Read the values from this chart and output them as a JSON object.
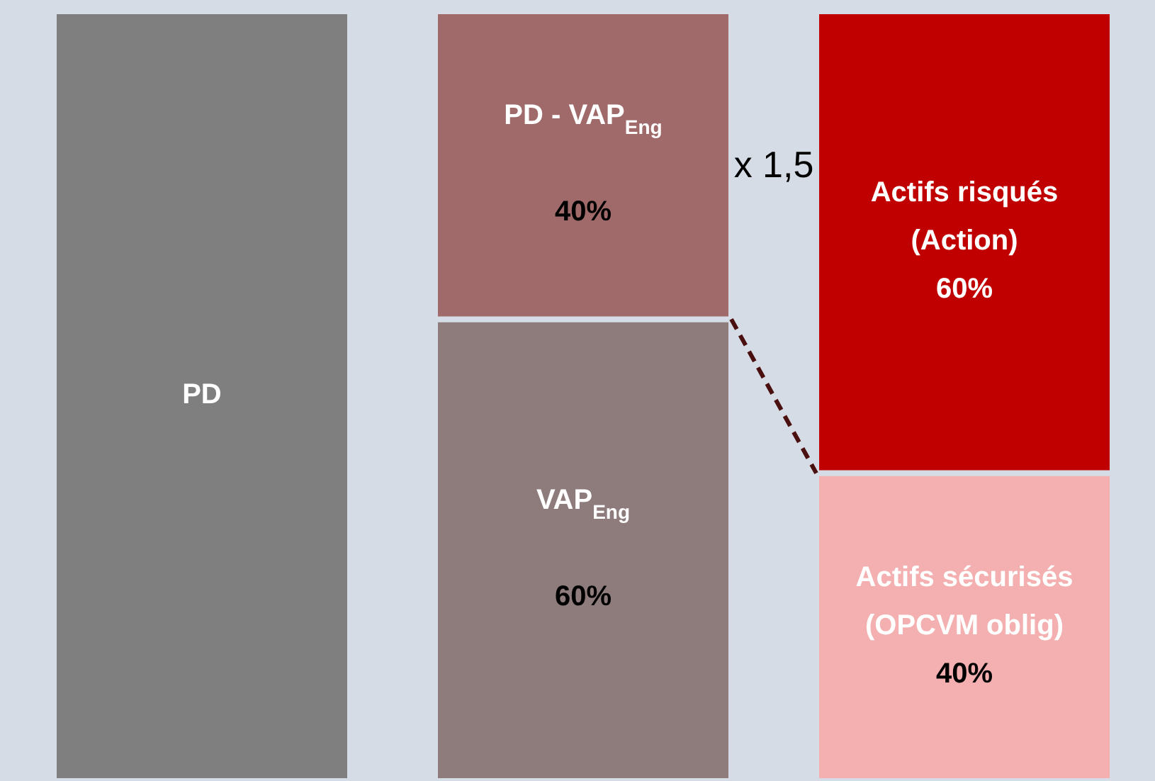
{
  "chart_data": {
    "type": "bar",
    "stacked": true,
    "ylim": [
      0,
      100
    ],
    "categories": [
      null,
      null,
      null
    ],
    "series": [
      {
        "values": [
          100,
          60,
          40
        ],
        "colors": [
          "#7f7f7f",
          "#8e7c7c",
          "#f4b0b0"
        ],
        "value_labels": [
          "PD",
          "VAP$_{Eng}$\n\n60%",
          "Actifs sécurisés\n(OPCVM oblig)\n40%"
        ]
      },
      {
        "values": [
          null,
          40,
          60
        ],
        "colors": [
          "#a06a6a",
          "#a06a6a",
          "#c00000"
        ],
        "value_labels": [
          null,
          "PD  - VAP$_{Eng}$\n\n40%",
          "Actifs risqués\n(Action)\n60%"
        ]
      }
    ],
    "annotations": [
      "x 1,5"
    ]
  }
}
